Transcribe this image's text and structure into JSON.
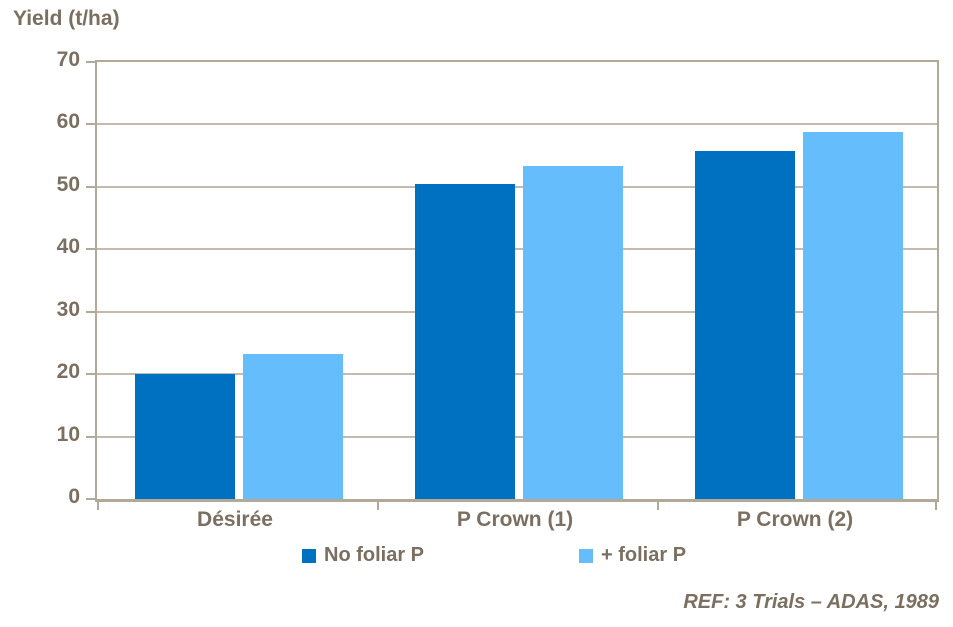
{
  "title": "Yield (t/ha)",
  "footnote": "REF: 3 Trials – ADAS, 1989",
  "colors": {
    "text": "#7a6f60",
    "axis": "#b3a998",
    "gridline": "#c3bbad",
    "no_foliar_p": "#0070C0",
    "plus_foliar_p": "#66BDFB",
    "background": "#ffffff"
  },
  "chart_data": {
    "type": "bar",
    "title": "Yield (t/ha)",
    "xlabel": "",
    "ylabel": "Yield (t/ha)",
    "categories": [
      "Désirée",
      "P Crown (1)",
      "P Crown (2)"
    ],
    "series": [
      {
        "name": "No foliar P",
        "color": "#0070C0",
        "values": [
          20.0,
          50.5,
          55.8
        ]
      },
      {
        "name": "+ foliar P",
        "color": "#66BDFB",
        "values": [
          23.2,
          53.3,
          58.8
        ]
      }
    ],
    "ylim": [
      0,
      70
    ],
    "ytick_step": 10,
    "yticks": [
      0,
      10,
      20,
      30,
      40,
      50,
      60,
      70
    ],
    "grid": true,
    "legend_position": "bottom",
    "annotation": "REF: 3 Trials – ADAS, 1989"
  }
}
